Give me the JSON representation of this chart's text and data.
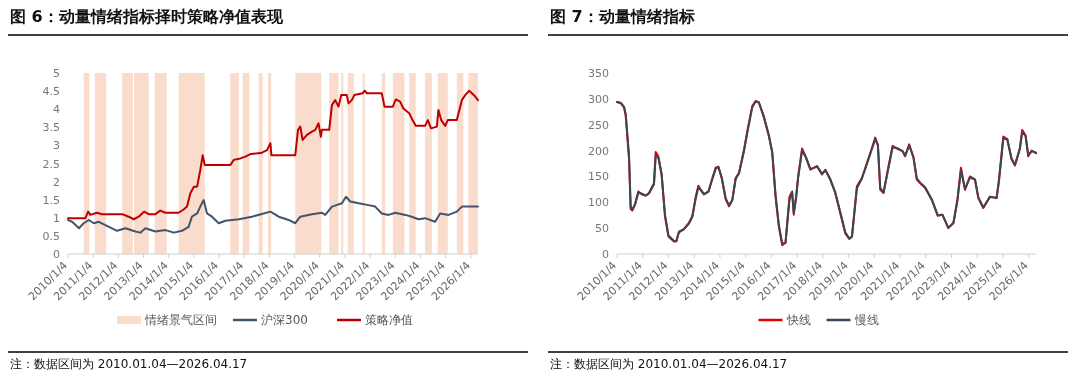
{
  "chart_data": [
    {
      "type": "line",
      "title": "图 6：动量情绪指标择时策略净值表现",
      "xlim": [
        "2010-01-04",
        "2026-04-17"
      ],
      "xticks": [
        {
          "value": "2010-01-04",
          "label": "2010/1/4"
        },
        {
          "value": "2011-01-04",
          "label": "2011/1/4"
        },
        {
          "value": "2012-01-04",
          "label": "2012/1/4"
        },
        {
          "value": "2013-01-04",
          "label": "2013/1/4"
        },
        {
          "value": "2014-01-04",
          "label": "2014/1/4"
        },
        {
          "value": "2015-01-04",
          "label": "2015/1/4"
        },
        {
          "value": "2016-01-04",
          "label": "2016/1/4"
        },
        {
          "value": "2017-01-04",
          "label": "2017/1/4"
        },
        {
          "value": "2018-01-04",
          "label": "2018/1/4"
        },
        {
          "value": "2019-01-04",
          "label": "2019/1/4"
        },
        {
          "value": "2020-01-04",
          "label": "2020/1/4"
        },
        {
          "value": "2021-01-04",
          "label": "2021/1/4"
        },
        {
          "value": "2022-01-04",
          "label": "2022/1/4"
        },
        {
          "value": "2023-01-04",
          "label": "2023/1/4"
        },
        {
          "value": "2024-01-04",
          "label": "2024/1/4"
        },
        {
          "value": "2025-01-04",
          "label": "2025/1/4"
        },
        {
          "value": "2026-01-04",
          "label": "2026/1/4"
        }
      ],
      "ylim": [
        0,
        5
      ],
      "yticks": [
        0,
        0.5,
        1,
        1.5,
        2,
        2.5,
        3,
        3.5,
        4,
        4.5,
        5
      ],
      "bands": [
        {
          "axis": "x",
          "from": "2010-08-19",
          "to": "2010-11-10",
          "label": "情绪景气区间",
          "color": "#f9dccb"
        },
        {
          "axis": "x",
          "from": "2011-01-28",
          "to": "2011-07-10",
          "color": "#f9dccb"
        },
        {
          "axis": "x",
          "from": "2012-03-01",
          "to": "2012-07-31",
          "color": "#f9dccb"
        },
        {
          "axis": "x",
          "from": "2012-08-18",
          "to": "2013-03-20",
          "color": "#f9dccb"
        },
        {
          "axis": "x",
          "from": "2013-06-14",
          "to": "2013-12-06",
          "color": "#f9dccb"
        },
        {
          "axis": "x",
          "from": "2014-05-27",
          "to": "2015-06-10",
          "color": "#f9dccb"
        },
        {
          "axis": "x",
          "from": "2016-06-16",
          "to": "2016-10-17",
          "color": "#f9dccb"
        },
        {
          "axis": "x",
          "from": "2016-12-10",
          "to": "2017-03-18",
          "color": "#f9dccb"
        },
        {
          "axis": "x",
          "from": "2017-07-31",
          "to": "2017-09-27",
          "color": "#f9dccb"
        },
        {
          "axis": "x",
          "from": "2017-12-13",
          "to": "2018-01-30",
          "color": "#f9dccb"
        },
        {
          "axis": "x",
          "from": "2019-01-14",
          "to": "2020-01-27",
          "color": "#f9dccb"
        },
        {
          "axis": "x",
          "from": "2020-05-20",
          "to": "2020-10-01",
          "color": "#f9dccb"
        },
        {
          "axis": "x",
          "from": "2020-11-10",
          "to": "2020-12-10",
          "color": "#f9dccb"
        },
        {
          "axis": "x",
          "from": "2021-02-13",
          "to": "2021-05-12",
          "color": "#f9dccb"
        },
        {
          "axis": "x",
          "from": "2021-09-17",
          "to": "2021-10-16",
          "color": "#f9dccb"
        },
        {
          "axis": "x",
          "from": "2022-06-21",
          "to": "2022-08-11",
          "color": "#f9dccb"
        },
        {
          "axis": "x",
          "from": "2022-11-29",
          "to": "2023-05-16",
          "color": "#f9dccb"
        },
        {
          "axis": "x",
          "from": "2023-07-24",
          "to": "2023-10-27",
          "color": "#f9dccb"
        },
        {
          "axis": "x",
          "from": "2024-03-10",
          "to": "2024-06-17",
          "color": "#f9dccb"
        },
        {
          "axis": "x",
          "from": "2024-09-09",
          "to": "2025-02-03",
          "color": "#f9dccb"
        },
        {
          "axis": "x",
          "from": "2025-06-14",
          "to": "2025-09-17",
          "color": "#f9dccb"
        },
        {
          "axis": "x",
          "from": "2025-11-29",
          "to": "2026-04-17",
          "color": "#f9dccb"
        }
      ],
      "series": [
        {
          "name": "沪深300",
          "color": "#44546a",
          "x": [
            "2010-01-04",
            "2010-03-05",
            "2010-06-12",
            "2010-08-19",
            "2010-11-01",
            "2011-01-14",
            "2011-03-27",
            "2011-06-30",
            "2011-12-17",
            "2012-04-16",
            "2012-09-08",
            "2012-11-18",
            "2013-01-30",
            "2013-06-25",
            "2013-11-17",
            "2014-03-18",
            "2014-07-16",
            "2014-10-19",
            "2014-12-06",
            "2015-02-20",
            "2015-04-07",
            "2015-05-26",
            "2015-07-13",
            "2015-09-24",
            "2015-12-30",
            "2016-04-05",
            "2016-10-17",
            "2017-04-25",
            "2017-10-12",
            "2018-01-18",
            "2018-05-19",
            "2018-10-10",
            "2019-01-14",
            "2019-03-27",
            "2019-09-13",
            "2020-02-04",
            "2020-03-23",
            "2020-06-29",
            "2020-11-21",
            "2021-01-18",
            "2021-03-22",
            "2021-07-21",
            "2021-12-10",
            "2022-03-18",
            "2022-06-21",
            "2022-09-28",
            "2023-01-04",
            "2023-05-28",
            "2023-08-30",
            "2023-12-06",
            "2024-03-10",
            "2024-08-03",
            "2024-10-15",
            "2025-02-14",
            "2025-06-14",
            "2025-08-26",
            "2025-12-10",
            "2026-04-17"
          ],
          "values": [
            0.94,
            0.89,
            0.71,
            0.85,
            0.94,
            0.85,
            0.89,
            0.8,
            0.64,
            0.71,
            0.62,
            0.59,
            0.71,
            0.62,
            0.66,
            0.59,
            0.64,
            0.75,
            1.03,
            1.12,
            1.31,
            1.49,
            1.12,
            1.03,
            0.85,
            0.92,
            0.96,
            1.03,
            1.12,
            1.17,
            1.03,
            0.94,
            0.85,
            1.03,
            1.1,
            1.14,
            1.08,
            1.31,
            1.4,
            1.58,
            1.45,
            1.4,
            1.35,
            1.31,
            1.12,
            1.08,
            1.14,
            1.08,
            1.03,
            0.96,
            0.99,
            0.89,
            1.12,
            1.08,
            1.17,
            1.31,
            1.31,
            1.31
          ]
        },
        {
          "name": "策略净值",
          "color": "#c00000",
          "x": [
            "2010-01-04",
            "2010-09-13",
            "2010-10-23",
            "2010-11-24",
            "2011-03-01",
            "2011-05-12",
            "2012-02-28",
            "2012-06-02",
            "2012-08-14",
            "2012-10-25",
            "2013-01-11",
            "2013-03-20",
            "2013-06-25",
            "2013-09-05",
            "2013-11-17",
            "2014-05-27",
            "2014-08-08",
            "2014-09-27",
            "2014-11-14",
            "2015-01-04",
            "2015-02-20",
            "2015-04-07",
            "2015-05-12",
            "2015-06-10",
            "2016-06-16",
            "2016-08-05",
            "2016-11-08",
            "2017-01-21",
            "2017-04-03",
            "2017-09-18",
            "2017-11-30",
            "2018-01-18",
            "2018-02-01",
            "2019-01-14",
            "2019-02-22",
            "2019-03-27",
            "2019-05-01",
            "2019-07-02",
            "2019-09-13",
            "2019-10-30",
            "2019-12-17",
            "2020-01-20",
            "2020-02-04",
            "2020-05-20",
            "2020-06-29",
            "2020-08-15",
            "2020-10-01",
            "2020-11-10",
            "2021-01-30",
            "2021-02-24",
            "2021-04-12",
            "2021-05-19",
            "2021-09-17",
            "2021-10-16",
            "2021-11-18",
            "2022-06-21",
            "2022-07-31",
            "2022-11-29",
            "2023-01-11",
            "2023-03-14",
            "2023-05-01",
            "2023-07-24",
            "2023-09-10",
            "2023-10-27",
            "2024-03-10",
            "2024-04-19",
            "2024-06-06",
            "2024-08-28",
            "2024-09-20",
            "2024-10-30",
            "2024-12-28",
            "2025-02-03",
            "2025-06-14",
            "2025-08-26",
            "2025-10-13",
            "2025-12-10",
            "2026-01-18",
            "2026-03-08",
            "2026-04-17"
          ],
          "values": [
            0.99,
            0.99,
            1.17,
            1.08,
            1.14,
            1.1,
            1.1,
            1.03,
            0.96,
            1.03,
            1.17,
            1.1,
            1.1,
            1.2,
            1.14,
            1.14,
            1.23,
            1.31,
            1.68,
            1.86,
            1.86,
            2.32,
            2.73,
            2.46,
            2.46,
            2.6,
            2.64,
            2.69,
            2.76,
            2.8,
            2.87,
            3.06,
            2.73,
            2.73,
            3.43,
            3.52,
            3.15,
            3.29,
            3.38,
            3.43,
            3.61,
            3.24,
            3.43,
            3.43,
            4.12,
            4.25,
            4.07,
            4.39,
            4.39,
            4.16,
            4.25,
            4.39,
            4.44,
            4.51,
            4.44,
            4.44,
            4.07,
            4.07,
            4.27,
            4.21,
            4.02,
            3.89,
            3.7,
            3.54,
            3.54,
            3.7,
            3.47,
            3.52,
            3.98,
            3.7,
            3.54,
            3.7,
            3.7,
            4.25,
            4.39,
            4.51,
            4.44,
            4.35,
            4.25
          ]
        }
      ],
      "legend": "bottom",
      "annotations": [
        "注：数据区间为 2010.01.04—2026.04.17"
      ]
    },
    {
      "type": "line",
      "title": "图 7：动量情绪指标",
      "xlim": [
        "2010-01-04",
        "2026-04-17"
      ],
      "xticks": [
        {
          "value": "2010-01-04",
          "label": "2010/1/4"
        },
        {
          "value": "2011-01-04",
          "label": "2011/1/4"
        },
        {
          "value": "2012-01-04",
          "label": "2012/1/4"
        },
        {
          "value": "2013-01-04",
          "label": "2013/1/4"
        },
        {
          "value": "2014-01-04",
          "label": "2014/1/4"
        },
        {
          "value": "2015-01-04",
          "label": "2015/1/4"
        },
        {
          "value": "2016-01-04",
          "label": "2016/1/4"
        },
        {
          "value": "2017-01-04",
          "label": "2017/1/4"
        },
        {
          "value": "2018-01-04",
          "label": "2018/1/4"
        },
        {
          "value": "2019-01-04",
          "label": "2019/1/4"
        },
        {
          "value": "2020-01-04",
          "label": "2020/1/4"
        },
        {
          "value": "2021-01-04",
          "label": "2021/1/4"
        },
        {
          "value": "2022-01-04",
          "label": "2022/1/4"
        },
        {
          "value": "2023-01-04",
          "label": "2023/1/4"
        },
        {
          "value": "2024-01-04",
          "label": "2024/1/4"
        },
        {
          "value": "2025-01-04",
          "label": "2025/1/4"
        },
        {
          "value": "2026-01-04",
          "label": "2026/1/4"
        }
      ],
      "ylim": [
        0,
        350
      ],
      "yticks": [
        0,
        50,
        100,
        150,
        200,
        250,
        300,
        350
      ],
      "series": [
        {
          "name": "快线",
          "color": "#e00000",
          "x": [
            "2010-01-04",
            "2010-02-26",
            "2010-04-14",
            "2010-05-08",
            "2010-06-24",
            "2010-07-17",
            "2010-08-10",
            "2010-09-17",
            "2010-11-03",
            "2010-12-30",
            "2011-02-15",
            "2011-04-03",
            "2011-06-13",
            "2011-07-07",
            "2011-08-13",
            "2011-09-29",
            "2011-11-16",
            "2012-01-04",
            "2012-03-23",
            "2012-04-25",
            "2012-06-01",
            "2012-08-11",
            "2012-10-21",
            "2012-12-08",
            "2013-01-26",
            "2013-03-04",
            "2013-04-20",
            "2013-05-23",
            "2013-07-24",
            "2013-09-19",
            "2013-11-05",
            "2013-12-13",
            "2014-01-29",
            "2014-03-26",
            "2014-05-13",
            "2014-06-29",
            "2014-08-15",
            "2014-10-02",
            "2014-12-12",
            "2015-01-28",
            "2015-04-08",
            "2015-05-25",
            "2015-07-11",
            "2015-09-20",
            "2015-11-29",
            "2016-01-16",
            "2016-03-03",
            "2016-04-19",
            "2016-06-06",
            "2016-07-23",
            "2016-09-17",
            "2016-10-25",
            "2016-11-17",
            "2016-12-20",
            "2017-01-18",
            "2017-03-15",
            "2017-05-10",
            "2017-07-11",
            "2017-10-13",
            "2017-12-23",
            "2018-02-08",
            "2018-04-19",
            "2018-06-29",
            "2018-09-08",
            "2018-11-18",
            "2019-01-14",
            "2019-02-21",
            "2019-05-02",
            "2019-07-12",
            "2019-09-21",
            "2019-12-01",
            "2020-01-17",
            "2020-02-24",
            "2020-03-28",
            "2020-05-14",
            "2020-07-14",
            "2020-09-19",
            "2020-11-19",
            "2021-02-08",
            "2021-03-17",
            "2021-05-13",
            "2021-07-13",
            "2021-08-29",
            "2021-10-15",
            "2021-12-25",
            "2022-03-29",
            "2022-06-22",
            "2022-08-27",
            "2022-11-20",
            "2023-01-31",
            "2023-03-28",
            "2023-05-18",
            "2023-07-14",
            "2023-09-23",
            "2023-12-03",
            "2024-01-19",
            "2024-03-30",
            "2024-07-02",
            "2024-10-05",
            "2024-11-07",
            "2025-01-08",
            "2025-03-05",
            "2025-05-05",
            "2025-06-22",
            "2025-08-31",
            "2025-10-04",
            "2025-11-20",
            "2025-12-28",
            "2026-02-15",
            "2026-04-17"
          ],
          "values": [
            294,
            292,
            283,
            267,
            183,
            87,
            84,
            97,
            121,
            115,
            113,
            118,
            137,
            197,
            189,
            154,
            73,
            34,
            24,
            24,
            43,
            48,
            60,
            73,
            111,
            132,
            121,
            115,
            121,
            147,
            167,
            169,
            147,
            106,
            92,
            105,
            147,
            157,
            202,
            238,
            286,
            296,
            293,
            264,
            228,
            196,
            111,
            53,
            17,
            22,
            111,
            121,
            76,
            111,
            150,
            204,
            186,
            163,
            170,
            154,
            163,
            144,
            118,
            79,
            40,
            29,
            34,
            131,
            147,
            176,
            205,
            225,
            210,
            124,
            118,
            163,
            209,
            204,
            199,
            189,
            212,
            186,
            144,
            137,
            128,
            105,
            74,
            76,
            50,
            60,
            105,
            167,
            124,
            150,
            144,
            108,
            89,
            111,
            108,
            144,
            227,
            222,
            183,
            171,
            205,
            240,
            229,
            189,
            200,
            195
          ]
        },
        {
          "name": "慢线",
          "color": "#3b4656",
          "x": [
            "2010-01-04",
            "2010-02-26",
            "2010-04-14",
            "2010-05-08",
            "2010-06-24",
            "2010-07-17",
            "2010-08-10",
            "2010-09-17",
            "2010-11-03",
            "2010-12-30",
            "2011-02-15",
            "2011-04-03",
            "2011-06-13",
            "2011-07-07",
            "2011-08-13",
            "2011-09-29",
            "2011-11-16",
            "2012-01-04",
            "2012-03-23",
            "2012-04-25",
            "2012-06-01",
            "2012-08-11",
            "2012-10-21",
            "2012-12-08",
            "2013-01-26",
            "2013-03-04",
            "2013-04-20",
            "2013-05-23",
            "2013-07-24",
            "2013-09-19",
            "2013-11-05",
            "2013-12-13",
            "2014-01-29",
            "2014-03-26",
            "2014-05-13",
            "2014-06-29",
            "2014-08-15",
            "2014-10-02",
            "2014-12-12",
            "2015-01-28",
            "2015-04-08",
            "2015-05-25",
            "2015-07-11",
            "2015-09-20",
            "2015-11-29",
            "2016-01-16",
            "2016-03-03",
            "2016-04-19",
            "2016-06-06",
            "2016-07-23",
            "2016-09-17",
            "2016-10-25",
            "2016-11-17",
            "2016-12-20",
            "2017-01-18",
            "2017-03-15",
            "2017-05-10",
            "2017-07-11",
            "2017-10-13",
            "2017-12-23",
            "2018-02-08",
            "2018-04-19",
            "2018-06-29",
            "2018-09-08",
            "2018-11-18",
            "2019-01-14",
            "2019-02-21",
            "2019-05-02",
            "2019-07-12",
            "2019-09-21",
            "2019-12-01",
            "2020-01-17",
            "2020-02-24",
            "2020-03-28",
            "2020-05-14",
            "2020-07-14",
            "2020-09-19",
            "2020-11-19",
            "2021-02-08",
            "2021-03-17",
            "2021-05-13",
            "2021-07-13",
            "2021-08-29",
            "2021-10-15",
            "2021-12-25",
            "2022-03-29",
            "2022-06-22",
            "2022-08-27",
            "2022-11-20",
            "2023-01-31",
            "2023-03-28",
            "2023-05-18",
            "2023-07-14",
            "2023-09-23",
            "2023-12-03",
            "2024-01-19",
            "2024-03-30",
            "2024-07-02",
            "2024-10-05",
            "2024-11-07",
            "2025-01-08",
            "2025-03-05",
            "2025-05-05",
            "2025-06-22",
            "2025-08-31",
            "2025-10-04",
            "2025-11-20",
            "2025-12-28",
            "2026-02-15",
            "2026-04-17"
          ],
          "values": [
            294,
            292,
            285,
            270,
            190,
            92,
            86,
            95,
            119,
            116,
            113,
            117,
            135,
            190,
            187,
            155,
            76,
            36,
            25,
            25,
            42,
            48,
            59,
            72,
            108,
            129,
            122,
            116,
            120,
            145,
            165,
            168,
            148,
            108,
            94,
            104,
            145,
            156,
            199,
            235,
            284,
            295,
            293,
            266,
            230,
            198,
            115,
            56,
            20,
            22,
            105,
            118,
            80,
            108,
            147,
            200,
            187,
            164,
            169,
            155,
            162,
            145,
            119,
            81,
            42,
            30,
            34,
            127,
            146,
            174,
            203,
            222,
            211,
            128,
            119,
            160,
            206,
            205,
            199,
            190,
            210,
            188,
            146,
            138,
            129,
            106,
            75,
            76,
            51,
            60,
            102,
            162,
            126,
            148,
            144,
            110,
            90,
            110,
            109,
            140,
            223,
            222,
            185,
            172,
            203,
            236,
            229,
            191,
            199,
            196
          ]
        }
      ],
      "legend": "bottom",
      "annotations": [
        "注：数据区间为 2010.01.04—2026.04.17"
      ]
    }
  ]
}
